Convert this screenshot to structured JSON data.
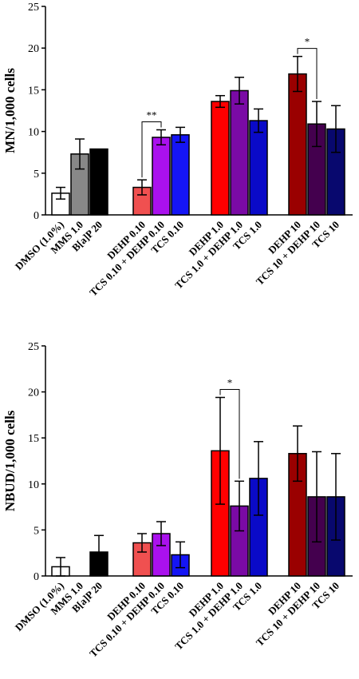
{
  "chart_data": [
    {
      "type": "bar",
      "title": "",
      "xlabel": "",
      "ylabel": "MN/1,000 cells",
      "ylim": [
        0,
        25
      ],
      "yticks": [
        0,
        5,
        10,
        15,
        20,
        25
      ],
      "grid": false,
      "categories": [
        "DMSO (1.0%)",
        "MMS 1.0",
        "B[a]P 20",
        "DEHP 0.10",
        "TCS 0.10 + DEHP 0.10",
        "TCS 0.10",
        "DEHP 1.0",
        "TCS 1.0 + DEHP 1.0",
        "TCS 1.0",
        "DEHP 10",
        "TCS 10 + DEHP 10",
        "TCS 10"
      ],
      "values": [
        2.6,
        7.3,
        7.9,
        3.3,
        9.3,
        9.6,
        13.6,
        14.9,
        11.3,
        16.9,
        10.9,
        10.3
      ],
      "errors": [
        0.7,
        1.8,
        0,
        0.9,
        0.9,
        0.9,
        0.7,
        1.6,
        1.4,
        2.1,
        2.7,
        2.8
      ],
      "colors": [
        "#ffffff",
        "#888888",
        "#000000",
        "#f05050",
        "#aa11ee",
        "#1515f5",
        "#ff0000",
        "#7a0aa5",
        "#0a0ac8",
        "#9a0000",
        "#44004e",
        "#08086e"
      ],
      "significance": [
        {
          "from": "DEHP 0.10",
          "to": "TCS 0.10 + DEHP 0.10",
          "label": "**"
        },
        {
          "from": "DEHP 10",
          "to": "TCS 10 + DEHP 10",
          "label": "*"
        }
      ]
    },
    {
      "type": "bar",
      "title": "",
      "xlabel": "",
      "ylabel": "NBUD/1,000 cells",
      "ylim": [
        0,
        25
      ],
      "yticks": [
        0,
        5,
        10,
        15,
        20,
        25
      ],
      "grid": false,
      "categories": [
        "DMSO (1.0%)",
        "MMS 1.0",
        "B[a]P 20",
        "DEHP 0.10",
        "TCS 0.10 + DEHP 0.10",
        "TCS 0.10",
        "DEHP 1.0",
        "TCS 1.0 + DEHP 1.0",
        "TCS 1.0",
        "DEHP 10",
        "TCS 10 + DEHP 10",
        "TCS 10"
      ],
      "values": [
        1.0,
        0,
        2.6,
        3.6,
        4.6,
        2.3,
        13.6,
        7.6,
        10.6,
        13.3,
        8.6,
        8.6
      ],
      "errors": [
        1.0,
        0,
        1.8,
        1.0,
        1.3,
        1.4,
        5.8,
        2.7,
        4.0,
        3.0,
        4.9,
        4.7
      ],
      "colors": [
        "#ffffff",
        "#888888",
        "#000000",
        "#f05050",
        "#aa11ee",
        "#1515f5",
        "#ff0000",
        "#7a0aa5",
        "#0a0ac8",
        "#9a0000",
        "#44004e",
        "#08086e"
      ],
      "significance": [
        {
          "from": "DEHP 1.0",
          "to": "TCS 1.0 + DEHP 1.0",
          "label": "*"
        }
      ]
    }
  ]
}
